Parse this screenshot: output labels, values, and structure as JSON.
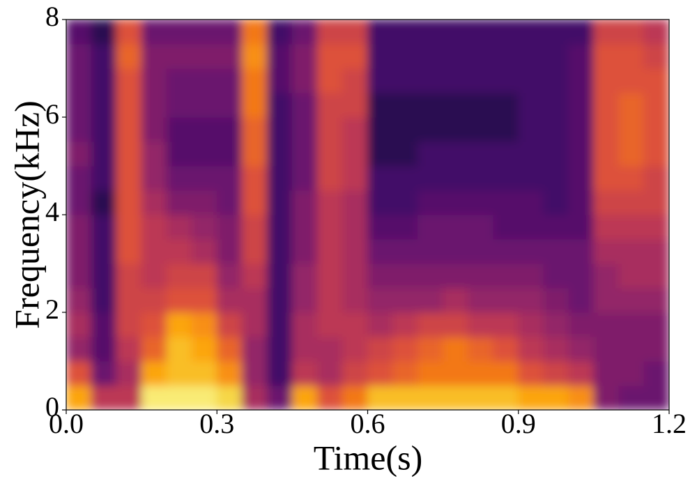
{
  "chart_data": {
    "type": "spectrogram",
    "x_label": "Time(s)",
    "y_label": "Frequency(kHz)",
    "xlim": [
      0,
      1.2
    ],
    "xticks": [
      {
        "value": 0,
        "label": "0.0"
      },
      0.3,
      0.6,
      0.9,
      1.2
    ],
    "ylim": [
      0,
      8
    ],
    "yticks": [
      0,
      2,
      4,
      6,
      8
    ],
    "colormap": "inferno",
    "zlim": [
      0,
      1
    ],
    "z": [
      [
        0.8,
        0.6,
        0.4,
        0.45,
        0.4,
        0.35,
        0.35,
        0.35,
        0.3,
        0.3,
        0.35,
        0.3,
        0.3,
        0.3,
        0.3,
        0.25
      ],
      [
        0.5,
        0.3,
        0.25,
        0.25,
        0.2,
        0.2,
        0.2,
        0.2,
        0.15,
        0.2,
        0.2,
        0.2,
        0.2,
        0.2,
        0.2,
        0.15
      ],
      [
        0.5,
        0.45,
        0.5,
        0.55,
        0.55,
        0.55,
        0.6,
        0.6,
        0.6,
        0.6,
        0.6,
        0.6,
        0.6,
        0.6,
        0.65,
        0.6
      ],
      [
        0.95,
        0.8,
        0.65,
        0.6,
        0.55,
        0.5,
        0.5,
        0.5,
        0.45,
        0.4,
        0.4,
        0.35,
        0.35,
        0.35,
        0.35,
        0.3
      ],
      [
        0.95,
        0.85,
        0.85,
        0.8,
        0.6,
        0.55,
        0.5,
        0.45,
        0.35,
        0.3,
        0.25,
        0.25,
        0.3,
        0.3,
        0.35,
        0.3
      ],
      [
        0.95,
        0.85,
        0.8,
        0.75,
        0.6,
        0.55,
        0.45,
        0.4,
        0.35,
        0.3,
        0.25,
        0.25,
        0.3,
        0.3,
        0.35,
        0.3
      ],
      [
        0.9,
        0.75,
        0.65,
        0.55,
        0.45,
        0.4,
        0.35,
        0.35,
        0.3,
        0.3,
        0.25,
        0.25,
        0.3,
        0.3,
        0.35,
        0.3
      ],
      [
        0.45,
        0.4,
        0.4,
        0.45,
        0.45,
        0.5,
        0.55,
        0.55,
        0.6,
        0.6,
        0.65,
        0.65,
        0.7,
        0.7,
        0.75,
        0.7
      ],
      [
        0.3,
        0.2,
        0.2,
        0.2,
        0.2,
        0.2,
        0.2,
        0.2,
        0.2,
        0.2,
        0.2,
        0.2,
        0.2,
        0.25,
        0.25,
        0.2
      ],
      [
        0.8,
        0.5,
        0.45,
        0.45,
        0.4,
        0.4,
        0.35,
        0.35,
        0.35,
        0.3,
        0.3,
        0.3,
        0.3,
        0.35,
        0.35,
        0.3
      ],
      [
        0.6,
        0.45,
        0.45,
        0.5,
        0.5,
        0.5,
        0.5,
        0.5,
        0.5,
        0.55,
        0.55,
        0.55,
        0.55,
        0.6,
        0.6,
        0.55
      ],
      [
        0.7,
        0.55,
        0.5,
        0.5,
        0.45,
        0.45,
        0.45,
        0.45,
        0.45,
        0.5,
        0.5,
        0.5,
        0.55,
        0.55,
        0.6,
        0.55
      ],
      [
        0.85,
        0.6,
        0.55,
        0.45,
        0.4,
        0.35,
        0.3,
        0.25,
        0.2,
        0.2,
        0.15,
        0.15,
        0.15,
        0.2,
        0.2,
        0.2
      ],
      [
        0.85,
        0.65,
        0.6,
        0.5,
        0.4,
        0.35,
        0.3,
        0.25,
        0.2,
        0.2,
        0.15,
        0.15,
        0.15,
        0.2,
        0.2,
        0.2
      ],
      [
        0.85,
        0.7,
        0.65,
        0.55,
        0.4,
        0.35,
        0.3,
        0.3,
        0.25,
        0.2,
        0.2,
        0.15,
        0.15,
        0.2,
        0.2,
        0.2
      ],
      [
        0.85,
        0.7,
        0.7,
        0.55,
        0.45,
        0.35,
        0.3,
        0.3,
        0.25,
        0.2,
        0.2,
        0.15,
        0.15,
        0.2,
        0.2,
        0.2
      ],
      [
        0.85,
        0.7,
        0.65,
        0.5,
        0.4,
        0.35,
        0.3,
        0.3,
        0.25,
        0.2,
        0.2,
        0.15,
        0.15,
        0.2,
        0.2,
        0.2
      ],
      [
        0.85,
        0.7,
        0.6,
        0.5,
        0.4,
        0.35,
        0.3,
        0.25,
        0.25,
        0.2,
        0.2,
        0.15,
        0.15,
        0.2,
        0.2,
        0.2
      ],
      [
        0.8,
        0.6,
        0.5,
        0.45,
        0.4,
        0.35,
        0.3,
        0.25,
        0.25,
        0.2,
        0.2,
        0.2,
        0.2,
        0.2,
        0.2,
        0.2
      ],
      [
        0.8,
        0.55,
        0.45,
        0.4,
        0.35,
        0.3,
        0.3,
        0.25,
        0.2,
        0.2,
        0.2,
        0.2,
        0.2,
        0.2,
        0.2,
        0.2
      ],
      [
        0.75,
        0.5,
        0.4,
        0.35,
        0.3,
        0.3,
        0.3,
        0.25,
        0.25,
        0.25,
        0.25,
        0.25,
        0.25,
        0.25,
        0.25,
        0.2
      ],
      [
        0.35,
        0.35,
        0.35,
        0.35,
        0.4,
        0.4,
        0.45,
        0.5,
        0.55,
        0.6,
        0.6,
        0.6,
        0.6,
        0.6,
        0.6,
        0.55
      ],
      [
        0.3,
        0.35,
        0.35,
        0.35,
        0.4,
        0.45,
        0.45,
        0.5,
        0.55,
        0.6,
        0.65,
        0.65,
        0.65,
        0.6,
        0.6,
        0.55
      ],
      [
        0.3,
        0.3,
        0.35,
        0.35,
        0.4,
        0.45,
        0.45,
        0.5,
        0.55,
        0.55,
        0.6,
        0.6,
        0.6,
        0.6,
        0.55,
        0.5
      ]
    ]
  }
}
